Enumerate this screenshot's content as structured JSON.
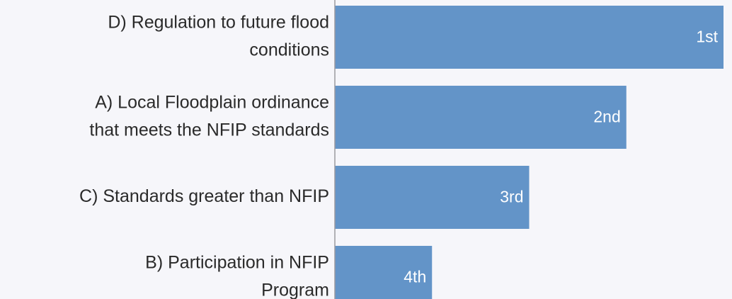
{
  "chart_data": {
    "type": "bar",
    "orientation": "horizontal",
    "categories": [
      [
        "D) Regulation to future flood",
        "conditions"
      ],
      [
        "A) Local Floodplain ordinance",
        "that meets the NFIP standards"
      ],
      [
        "C) Standards greater than NFIP"
      ],
      [
        "B) Participation in NFIP",
        "Program"
      ]
    ],
    "values": [
      4,
      3,
      2,
      1
    ],
    "rank_labels": [
      "1st",
      "2nd",
      "3rd",
      "4th"
    ],
    "color": "#6394c8",
    "xlim": [
      0,
      4
    ]
  }
}
